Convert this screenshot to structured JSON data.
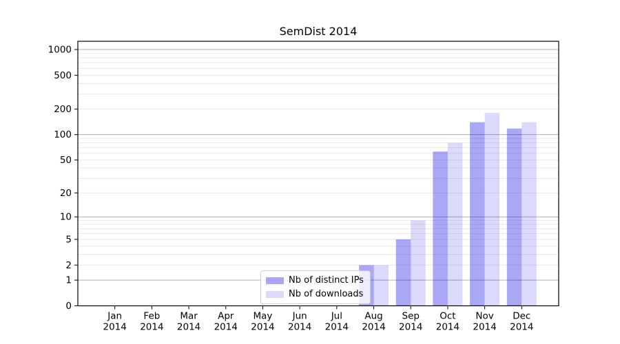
{
  "chart_data": {
    "type": "bar",
    "title": "SemDist 2014",
    "months": [
      "Jan",
      "Feb",
      "Mar",
      "Apr",
      "May",
      "Jun",
      "Jul",
      "Aug",
      "Sep",
      "Oct",
      "Nov",
      "Dec"
    ],
    "year": "2014",
    "series": [
      {
        "name": "Nb of distinct IPs",
        "color": "#aaa7f5",
        "fill_rgba": "rgba(12,4,226,0.35)",
        "values": [
          0,
          0,
          0,
          0,
          0,
          0,
          0,
          2,
          5,
          63,
          140,
          118
        ]
      },
      {
        "name": "Nb of downloads",
        "color": "#dcdaf8",
        "fill_rgba": "rgba(22,8,222,0.15)",
        "values": [
          0,
          0,
          0,
          0,
          0,
          0,
          0,
          2,
          9,
          80,
          180,
          140
        ]
      }
    ],
    "yticks": [
      0,
      1,
      2,
      5,
      10,
      20,
      50,
      100,
      200,
      500,
      1000
    ],
    "ylim": [
      0,
      1250
    ],
    "yscale": "log1p",
    "grid": {
      "major_color": "#b0b0b0",
      "minor_color": "#eaeaea",
      "major_at": [
        1,
        10,
        100,
        1000
      ]
    },
    "axis_color": "#000000",
    "legend_position": "lower center"
  }
}
